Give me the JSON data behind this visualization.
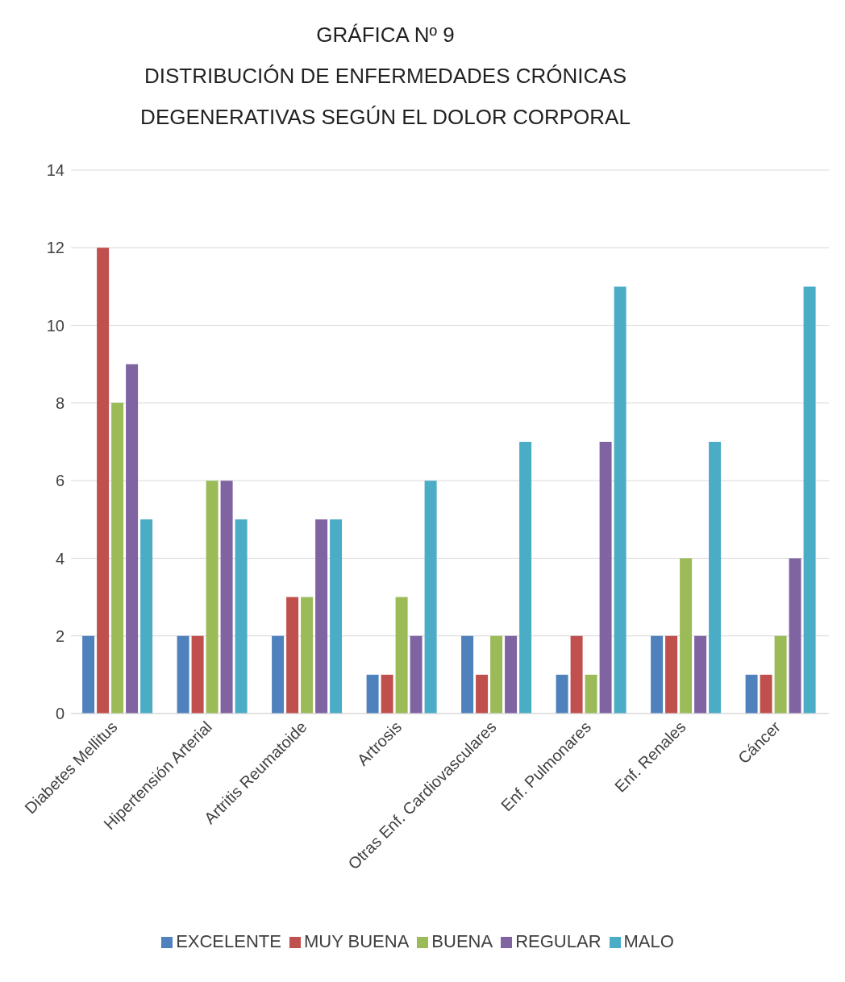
{
  "chart_data": {
    "type": "bar",
    "title": "GRÁFICA Nº 9",
    "subtitle": "DISTRIBUCIÓN DE ENFERMEDADES CRÓNICAS\nDEGENERATIVAS SEGÚN EL DOLOR CORPORAL",
    "categories": [
      "Diabetes Mellitus",
      "Hipertensión Arterial",
      "Artritis Reumatoide",
      "Artrosis",
      "Otras Enf. Cardiovasculares",
      "Enf. Pulmonares",
      "Enf. Renales",
      "Cáncer"
    ],
    "series": [
      {
        "name": "EXCELENTE",
        "color": "#4f81bd",
        "values": [
          2,
          2,
          2,
          1,
          2,
          1,
          2,
          1
        ]
      },
      {
        "name": "MUY BUENA",
        "color": "#c0504d",
        "values": [
          12,
          2,
          3,
          1,
          1,
          2,
          2,
          1
        ]
      },
      {
        "name": "BUENA",
        "color": "#9bbb59",
        "values": [
          8,
          6,
          3,
          3,
          2,
          1,
          4,
          2
        ]
      },
      {
        "name": "REGULAR",
        "color": "#8064a2",
        "values": [
          9,
          6,
          5,
          2,
          2,
          7,
          2,
          4
        ]
      },
      {
        "name": "MALO",
        "color": "#4bacc6",
        "values": [
          5,
          5,
          5,
          6,
          7,
          11,
          7,
          11
        ]
      }
    ],
    "ylim": [
      0,
      14
    ],
    "yticks": [
      0,
      2,
      4,
      6,
      8,
      10,
      12,
      14
    ],
    "grid": "y",
    "legend": "bottom"
  }
}
